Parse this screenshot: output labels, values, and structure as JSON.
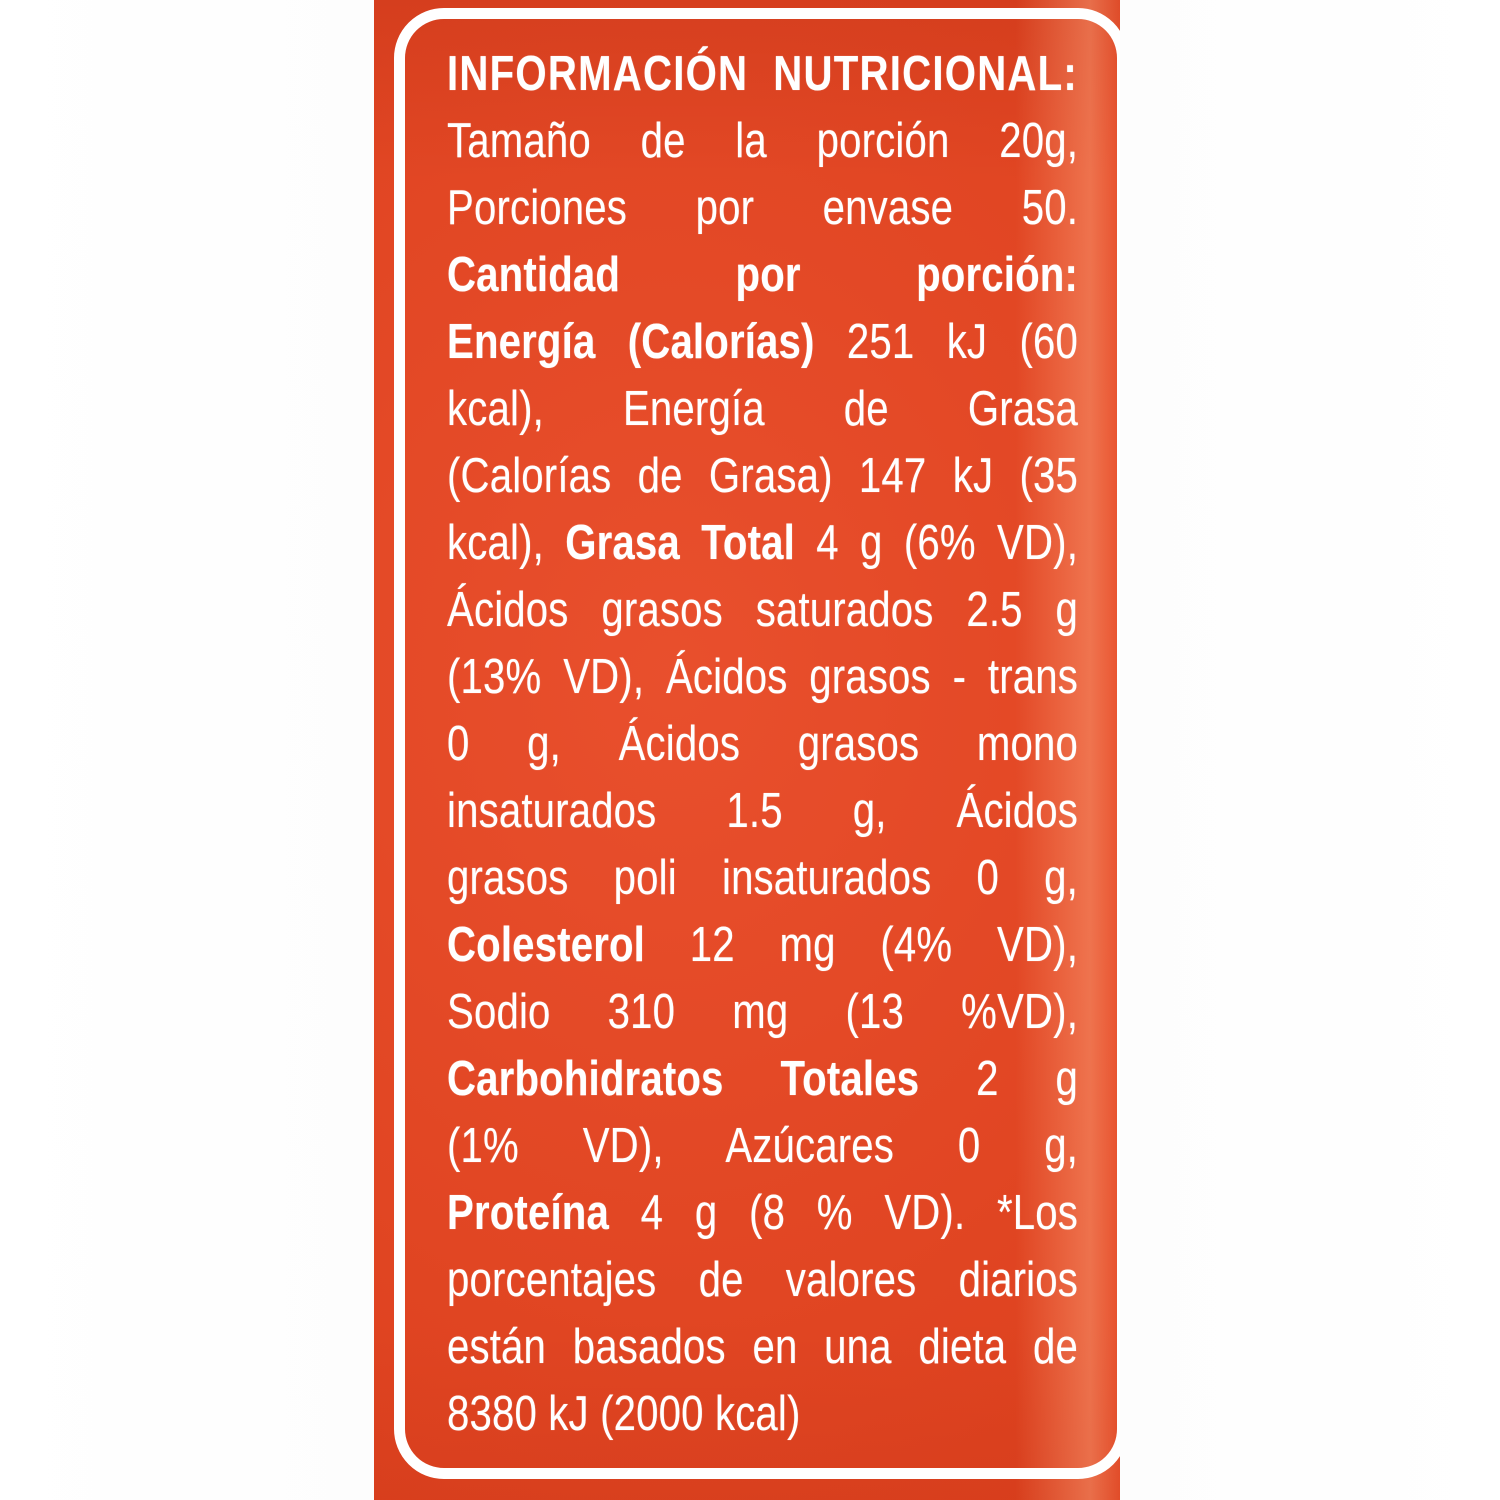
{
  "colors": {
    "package_red": "#e7421d",
    "frame_white": "#ffffff",
    "text_white": "#ffffff",
    "page_background": "#fdfdfd"
  },
  "label": {
    "title": "INFORMACIÓN NUTRICIONAL:",
    "serving_size": "20g",
    "servings_per_container": "50",
    "nutrition_facts": {
      "energia_kj": "251 kJ",
      "energia_kcal": "60 kcal",
      "energia_de_grasa_kj": "147 kJ",
      "energia_de_grasa_kcal": "35 kcal",
      "grasa_total": "4 g (6% VD)",
      "acidos_grasos_saturados": "2.5 g (13% VD)",
      "acidos_grasos_trans": "0 g",
      "acidos_grasos_mono_insaturados": "1.5 g",
      "acidos_grasos_poli_insaturados": "0 g",
      "colesterol": "12 mg (4% VD)",
      "sodio": "310 mg (13 %VD)",
      "carbohidratos_totales": "2 g (1% VD)",
      "azucares": "0 g",
      "proteina": "4 g (8 % VD)",
      "dieta_base": "8380 kJ (2000 kcal)"
    },
    "lines": [
      {
        "cls": "title",
        "parts": [
          {
            "text": "INFORMACIÓN NUTRICIONAL:",
            "bold": true
          }
        ]
      },
      {
        "parts": [
          {
            "text": "Tamaño de la porción 20g,",
            "bold": false
          }
        ]
      },
      {
        "parts": [
          {
            "text": "Porciones por envase 50.",
            "bold": false
          }
        ]
      },
      {
        "parts": [
          {
            "text": "Cantidad por porción:",
            "bold": true
          }
        ]
      },
      {
        "parts": [
          {
            "text": "Energía (Calorías)",
            "bold": true
          },
          {
            "text": " 251 kJ (60",
            "bold": false
          }
        ]
      },
      {
        "parts": [
          {
            "text": "kcal), Energía de Grasa",
            "bold": false
          }
        ]
      },
      {
        "parts": [
          {
            "text": "(Calorías de Grasa) 147 kJ (35",
            "bold": false
          }
        ]
      },
      {
        "parts": [
          {
            "text": "kcal), ",
            "bold": false
          },
          {
            "text": "Grasa Total",
            "bold": true
          },
          {
            "text": " 4 g (6% VD),",
            "bold": false
          }
        ]
      },
      {
        "parts": [
          {
            "text": "Ácidos grasos saturados 2.5 g",
            "bold": false
          }
        ]
      },
      {
        "parts": [
          {
            "text": "(13% VD), Ácidos grasos - trans",
            "bold": false
          }
        ]
      },
      {
        "parts": [
          {
            "text": "0 g, Ácidos grasos mono",
            "bold": false
          }
        ]
      },
      {
        "parts": [
          {
            "text": "insaturados 1.5 g, Ácidos",
            "bold": false
          }
        ]
      },
      {
        "parts": [
          {
            "text": "grasos poli insaturados 0 g,",
            "bold": false
          }
        ]
      },
      {
        "parts": [
          {
            "text": "Colesterol",
            "bold": true
          },
          {
            "text": " 12 mg (4% VD),",
            "bold": false
          }
        ]
      },
      {
        "parts": [
          {
            "text": "Sodio 310 mg (13 %VD),",
            "bold": false
          }
        ]
      },
      {
        "parts": [
          {
            "text": "Carbohidratos Totales",
            "bold": true
          },
          {
            "text": " 2 g",
            "bold": false
          }
        ]
      },
      {
        "parts": [
          {
            "text": "(1% VD), Azúcares 0 g,",
            "bold": false
          }
        ]
      },
      {
        "parts": [
          {
            "text": "Proteína",
            "bold": true
          },
          {
            "text": " 4 g (8 % VD). *Los",
            "bold": false
          }
        ]
      },
      {
        "parts": [
          {
            "text": "porcentajes de valores diarios",
            "bold": false
          }
        ]
      },
      {
        "parts": [
          {
            "text": "están basados en una dieta de",
            "bold": false
          }
        ]
      },
      {
        "cls": "endleft",
        "parts": [
          {
            "text": "8380 kJ (2000 kcal)",
            "bold": false
          }
        ]
      }
    ]
  }
}
